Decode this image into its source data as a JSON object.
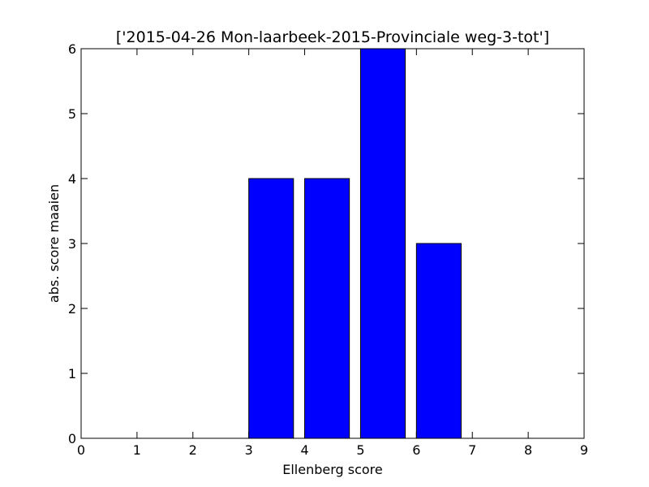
{
  "chart_data": {
    "type": "bar",
    "title": "['2015-04-26 Mon-laarbeek-2015-Provinciale weg-3-tot']",
    "xlabel": "Ellenberg score",
    "ylabel": "abs. score maaien",
    "bar_width": 0.8,
    "x": [
      0,
      1,
      2,
      3,
      4,
      5,
      6,
      7,
      8
    ],
    "values": [
      0,
      0,
      0,
      4,
      4,
      6,
      3,
      0,
      0
    ],
    "xlim": [
      0,
      9
    ],
    "ylim": [
      0,
      6
    ],
    "xticks": [
      "0",
      "1",
      "2",
      "3",
      "4",
      "5",
      "6",
      "7",
      "8",
      "9"
    ],
    "yticks": [
      "0",
      "1",
      "2",
      "3",
      "4",
      "5",
      "6"
    ],
    "grid": false,
    "bar_color": "#0000ff",
    "edge_color": "#000000"
  }
}
